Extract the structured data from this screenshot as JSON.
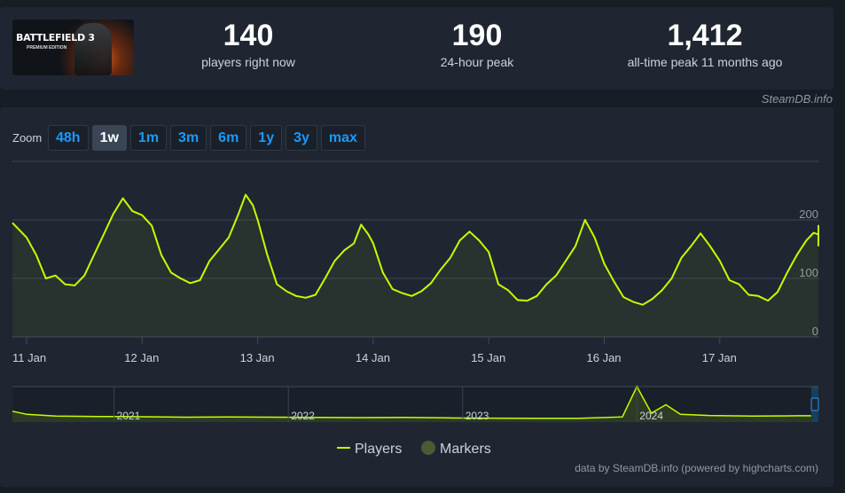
{
  "game": {
    "logo_text": "BATTLEFIELD 3",
    "logo_sub": "PREMIUM EDITION"
  },
  "stats": [
    {
      "value": "140",
      "label": "players right now"
    },
    {
      "value": "190",
      "label": "24-hour peak"
    },
    {
      "value": "1,412",
      "label": "all-time peak 11 months ago"
    }
  ],
  "credit_top": "SteamDB.info",
  "zoom": {
    "label": "Zoom",
    "buttons": [
      "48h",
      "1w",
      "1m",
      "3m",
      "6m",
      "1y",
      "3y",
      "max"
    ],
    "active": "1w"
  },
  "legend": {
    "players_label": "Players",
    "markers_label": "Markers"
  },
  "credit_bottom": "data by SteamDB.info (powered by highcharts.com)",
  "colors": {
    "series": "#c3ff00",
    "background": "#1f2631",
    "page": "#171d25",
    "accent": "#1999ff",
    "marker": "#4b5a34"
  },
  "chart_data": [
    {
      "type": "line",
      "series": [
        {
          "name": "Players"
        }
      ],
      "x_tick_labels": [
        "11 Jan",
        "12 Jan",
        "13 Jan",
        "14 Jan",
        "15 Jan",
        "16 Jan",
        "17 Jan"
      ],
      "y_tick_labels": [
        "0",
        "100",
        "200"
      ],
      "ylim": [
        0,
        300
      ],
      "grid": true,
      "legend_placement": "bottom-center",
      "y_position": "right",
      "points": [
        [
          "Jan 10 20:00",
          195
        ],
        [
          "Jan 11 00:00",
          170
        ],
        [
          "Jan 11 02:00",
          140
        ],
        [
          "Jan 11 04:00",
          100
        ],
        [
          "Jan 11 06:00",
          105
        ],
        [
          "Jan 11 08:00",
          90
        ],
        [
          "Jan 11 10:00",
          88
        ],
        [
          "Jan 11 12:00",
          105
        ],
        [
          "Jan 11 14:00",
          140
        ],
        [
          "Jan 11 16:00",
          175
        ],
        [
          "Jan 11 18:00",
          210
        ],
        [
          "Jan 11 20:00",
          237
        ],
        [
          "Jan 11 22:00",
          215
        ],
        [
          "Jan 12 00:00",
          208
        ],
        [
          "Jan 12 02:00",
          190
        ],
        [
          "Jan 12 04:00",
          140
        ],
        [
          "Jan 12 06:00",
          110
        ],
        [
          "Jan 12 08:00",
          100
        ],
        [
          "Jan 12 10:00",
          92
        ],
        [
          "Jan 12 12:00",
          97
        ],
        [
          "Jan 12 14:00",
          130
        ],
        [
          "Jan 12 16:00",
          150
        ],
        [
          "Jan 12 18:00",
          170
        ],
        [
          "Jan 12 20:00",
          210
        ],
        [
          "Jan 12 21:30",
          243
        ],
        [
          "Jan 12 23:00",
          225
        ],
        [
          "Jan 13 00:00",
          200
        ],
        [
          "Jan 13 02:00",
          140
        ],
        [
          "Jan 13 04:00",
          90
        ],
        [
          "Jan 13 06:00",
          78
        ],
        [
          "Jan 13 08:00",
          70
        ],
        [
          "Jan 13 10:00",
          67
        ],
        [
          "Jan 13 12:00",
          72
        ],
        [
          "Jan 13 14:00",
          100
        ],
        [
          "Jan 13 16:00",
          130
        ],
        [
          "Jan 13 18:00",
          148
        ],
        [
          "Jan 13 20:00",
          160
        ],
        [
          "Jan 13 21:30",
          192
        ],
        [
          "Jan 13 23:00",
          175
        ],
        [
          "Jan 14 00:00",
          160
        ],
        [
          "Jan 14 02:00",
          110
        ],
        [
          "Jan 14 04:00",
          82
        ],
        [
          "Jan 14 06:00",
          75
        ],
        [
          "Jan 14 08:00",
          70
        ],
        [
          "Jan 14 10:00",
          78
        ],
        [
          "Jan 14 12:00",
          92
        ],
        [
          "Jan 14 14:00",
          115
        ],
        [
          "Jan 14 16:00",
          135
        ],
        [
          "Jan 14 18:00",
          165
        ],
        [
          "Jan 14 20:00",
          180
        ],
        [
          "Jan 14 22:00",
          165
        ],
        [
          "Jan 15 00:00",
          145
        ],
        [
          "Jan 15 02:00",
          90
        ],
        [
          "Jan 15 04:00",
          80
        ],
        [
          "Jan 15 06:00",
          63
        ],
        [
          "Jan 15 08:00",
          62
        ],
        [
          "Jan 15 10:00",
          70
        ],
        [
          "Jan 15 12:00",
          90
        ],
        [
          "Jan 15 14:00",
          105
        ],
        [
          "Jan 15 16:00",
          130
        ],
        [
          "Jan 15 18:00",
          155
        ],
        [
          "Jan 15 20:00",
          200
        ],
        [
          "Jan 15 22:00",
          170
        ],
        [
          "Jan 16 00:00",
          125
        ],
        [
          "Jan 16 02:00",
          95
        ],
        [
          "Jan 16 04:00",
          68
        ],
        [
          "Jan 16 06:00",
          60
        ],
        [
          "Jan 16 08:00",
          55
        ],
        [
          "Jan 16 10:00",
          65
        ],
        [
          "Jan 16 12:00",
          80
        ],
        [
          "Jan 16 14:00",
          100
        ],
        [
          "Jan 16 16:00",
          135
        ],
        [
          "Jan 16 18:00",
          155
        ],
        [
          "Jan 16 20:00",
          177
        ],
        [
          "Jan 16 22:00",
          155
        ],
        [
          "Jan 17 00:00",
          130
        ],
        [
          "Jan 17 02:00",
          97
        ],
        [
          "Jan 17 04:00",
          90
        ],
        [
          "Jan 17 06:00",
          72
        ],
        [
          "Jan 17 08:00",
          70
        ],
        [
          "Jan 17 10:00",
          62
        ],
        [
          "Jan 17 12:00",
          77
        ],
        [
          "Jan 17 14:00",
          110
        ],
        [
          "Jan 17 16:00",
          140
        ],
        [
          "Jan 17 18:00",
          165
        ],
        [
          "Jan 17 19:30",
          178
        ],
        [
          "Jan 17 20:30",
          175
        ],
        [
          "Jan 17 21:30",
          190
        ],
        [
          "Jan 17 23:00",
          155
        ]
      ]
    },
    {
      "type": "area",
      "role": "navigator",
      "x_tick_labels": [
        "2021",
        "2022",
        "2023",
        "2024"
      ],
      "note_free": true,
      "series": [
        {
          "name": "Players",
          "points": [
            [
              "2020-06",
              380
            ],
            [
              "2020-07",
              250
            ],
            [
              "2020-09",
              180
            ],
            [
              "2020-12",
              160
            ],
            [
              "2021-03",
              150
            ],
            [
              "2021-06",
              130
            ],
            [
              "2021-09",
              140
            ],
            [
              "2021-12",
              130
            ],
            [
              "2022-03",
              120
            ],
            [
              "2022-06",
              110
            ],
            [
              "2022-09",
              120
            ],
            [
              "2022-12",
              100
            ],
            [
              "2023-03",
              90
            ],
            [
              "2023-06",
              80
            ],
            [
              "2023-09",
              85
            ],
            [
              "2023-12",
              140
            ],
            [
              "2024-01",
              1412
            ],
            [
              "2024-02",
              300
            ],
            [
              "2024-03",
              650
            ],
            [
              "2024-04",
              250
            ],
            [
              "2024-06",
              200
            ],
            [
              "2024-09",
              180
            ],
            [
              "2024-12",
              190
            ],
            [
              "2025-01",
              190
            ]
          ]
        }
      ]
    }
  ]
}
